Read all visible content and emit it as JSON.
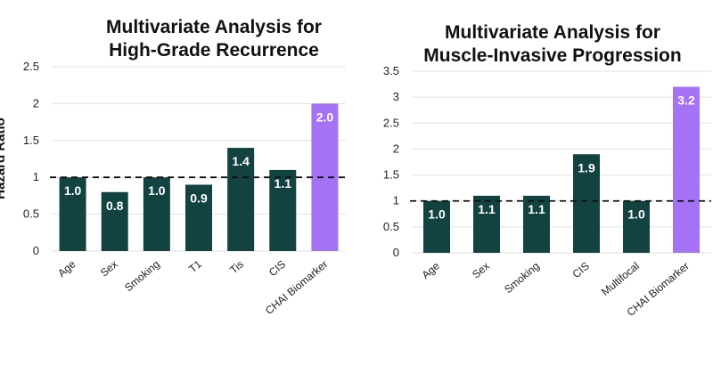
{
  "chart_data": [
    {
      "type": "bar",
      "title": [
        "Multivariate Analysis for",
        "High-Grade Recurrence"
      ],
      "ylabel": "Hazard Ratio",
      "xlabel": "",
      "categories": [
        "Age",
        "Sex",
        "Smoking",
        "T1",
        "Tis",
        "CIS",
        "CHAI Biomarker"
      ],
      "values": [
        1.0,
        0.8,
        1.0,
        0.9,
        1.4,
        1.1,
        2.0
      ],
      "data_labels": [
        "1.0",
        "0.8",
        "1.0",
        "0.9",
        "1.4",
        "1.1",
        "2.0"
      ],
      "ylim": [
        0,
        2.5
      ],
      "yticks": [
        0,
        0.5,
        1,
        1.5,
        2,
        2.5
      ],
      "ytick_labels": [
        "0",
        "0.5",
        "1",
        "1.5",
        "2",
        "2.5"
      ],
      "reference_line": 1,
      "grid": true,
      "highlight_category": "CHAI Biomarker"
    },
    {
      "type": "bar",
      "title": [
        "Multivariate Analysis for",
        "Muscle-Invasive Progression"
      ],
      "ylabel": "",
      "xlabel": "",
      "categories": [
        "Age",
        "Sex",
        "Smoking",
        "CIS",
        "Multifocal",
        "CHAI Biomarker"
      ],
      "values": [
        1.0,
        1.1,
        1.1,
        1.9,
        1.0,
        3.2
      ],
      "data_labels": [
        "1.0",
        "1.1",
        "1.1",
        "1.9",
        "1.0",
        "3.2"
      ],
      "ylim": [
        0,
        3.5
      ],
      "yticks": [
        0,
        0.5,
        1,
        1.5,
        2,
        2.5,
        3,
        3.5
      ],
      "ytick_labels": [
        "0",
        "0.5",
        "1",
        "1.5",
        "2",
        "2.5",
        "3",
        "3.5"
      ],
      "reference_line": 1,
      "grid": true,
      "highlight_category": "CHAI Biomarker"
    }
  ],
  "colors": {
    "bar": "#124340",
    "highlight": "#a472f5",
    "grid": "#e2e2e2",
    "reference_line": "#111111",
    "label": "#ffffff"
  }
}
